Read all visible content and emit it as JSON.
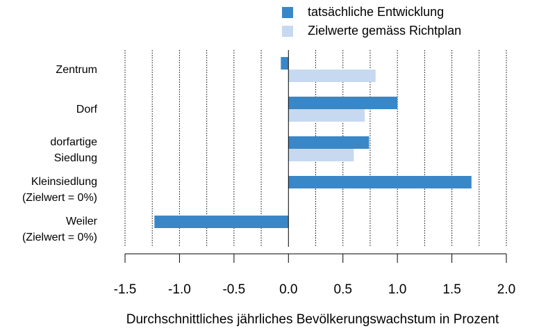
{
  "chart_data": {
    "type": "bar",
    "orientation": "horizontal",
    "x_label": "Durchschnittliches jährliches Bevölkerungswachstum in Prozent",
    "categories": [
      "Zentrum",
      "Dorf",
      "dorfartige\nSiedlung",
      "Kleinsiedlung\n(Zielwert = 0%)",
      "Weiler\n(Zielwert = 0%)"
    ],
    "series": [
      {
        "name": "tatsächliche Entwicklung",
        "color": "#3a87c8",
        "values": [
          -0.07,
          1.0,
          0.74,
          1.68,
          -1.23
        ]
      },
      {
        "name": "Zielwerte gemäss Richtplan",
        "color": "#c6d9f0",
        "values": [
          0.8,
          0.7,
          0.6,
          null,
          null
        ]
      }
    ],
    "xlim": [
      -1.5,
      2.0
    ],
    "xticks": [
      {
        "value": -1.5,
        "label": "-1.5"
      },
      {
        "value": -1.0,
        "label": "-1.0"
      },
      {
        "value": -0.5,
        "label": "-0.5"
      },
      {
        "value": 0.0,
        "label": "0.0"
      },
      {
        "value": 0.5,
        "label": "0.5"
      },
      {
        "value": 1.0,
        "label": "1.0"
      },
      {
        "value": 1.5,
        "label": "1.5"
      },
      {
        "value": 2.0,
        "label": "2.0"
      }
    ],
    "xgrid": [
      -1.5,
      -1.25,
      -1.0,
      -0.75,
      -0.5,
      -0.25,
      0.25,
      0.5,
      0.75,
      1.0,
      1.25,
      1.5,
      1.75,
      2.0
    ],
    "grid": true,
    "legend": "top"
  }
}
